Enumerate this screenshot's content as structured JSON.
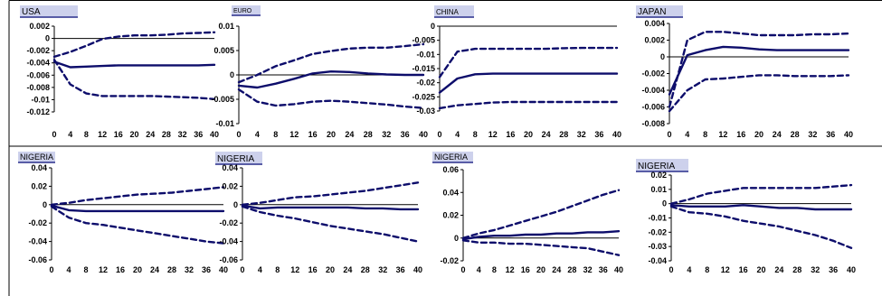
{
  "figure": {
    "colors": {
      "line": "#0d0d6b",
      "label_bg": "#cdd1ec",
      "label_border": "#2a2f8c",
      "frame": "#000000",
      "text": "#000000"
    }
  },
  "chart_data": [
    {
      "type": "line",
      "title": "USA",
      "x": [
        0,
        4,
        8,
        12,
        16,
        20,
        24,
        28,
        32,
        36,
        40
      ],
      "ylim": [
        -0.012,
        0.002
      ],
      "yticks": [
        "0.002",
        "0",
        "-0.002",
        "-0.004",
        "-0.006",
        "-0.008",
        "-0.01",
        "-0.012"
      ],
      "xticks": [
        "0",
        "4",
        "8",
        "12",
        "16",
        "20",
        "24",
        "28",
        "32",
        "36",
        "40"
      ],
      "zero_line": true,
      "series": [
        {
          "style": "dashed",
          "values": [
            -0.003,
            -0.0022,
            -0.0012,
            -0.0001,
            0.0003,
            0.0005,
            0.0005,
            0.0006,
            0.0008,
            0.0009,
            0.001
          ]
        },
        {
          "style": "solid",
          "values": [
            -0.0038,
            -0.0047,
            -0.0046,
            -0.0045,
            -0.0044,
            -0.0044,
            -0.0044,
            -0.0044,
            -0.0044,
            -0.0044,
            -0.0043
          ]
        },
        {
          "style": "dashed",
          "values": [
            -0.0035,
            -0.0075,
            -0.009,
            -0.0094,
            -0.0094,
            -0.0094,
            -0.0094,
            -0.0095,
            -0.0096,
            -0.0097,
            -0.0099
          ]
        }
      ]
    },
    {
      "type": "line",
      "title": "EURO",
      "x": [
        0,
        4,
        8,
        12,
        16,
        20,
        24,
        28,
        32,
        36,
        40
      ],
      "ylim": [
        -0.01,
        0.01
      ],
      "yticks": [
        "0.01",
        "0.005",
        "0",
        "-0.005",
        "-0.01"
      ],
      "xticks": [
        "0",
        "4",
        "8",
        "12",
        "16",
        "20",
        "24",
        "28",
        "32",
        "36",
        "40"
      ],
      "zero_line": true,
      "series": [
        {
          "style": "dashed",
          "values": [
            -0.0015,
            0,
            0.0018,
            0.003,
            0.0043,
            0.0049,
            0.0054,
            0.0056,
            0.0056,
            0.0059,
            0.0063
          ]
        },
        {
          "style": "solid",
          "values": [
            -0.0022,
            -0.0026,
            -0.0018,
            -0.0008,
            0.0003,
            0.0007,
            0.0006,
            0.0003,
            0.0001,
            0,
            0
          ]
        },
        {
          "style": "dashed",
          "values": [
            -0.003,
            -0.0055,
            -0.0063,
            -0.006,
            -0.0055,
            -0.0053,
            -0.0055,
            -0.0058,
            -0.0061,
            -0.0065,
            -0.0068
          ]
        }
      ]
    },
    {
      "type": "line",
      "title": "CHINA",
      "x": [
        0,
        4,
        8,
        12,
        16,
        20,
        24,
        28,
        32,
        36,
        40
      ],
      "ylim": [
        -0.03,
        0
      ],
      "yticks": [
        "0",
        "-0.005",
        "-0.01",
        "-0.015",
        "-0.02",
        "-0.025",
        "-0.03"
      ],
      "xticks": [
        "0",
        "4",
        "8",
        "12",
        "16",
        "20",
        "24",
        "28",
        "32",
        "36",
        "40"
      ],
      "zero_line": true,
      "series": [
        {
          "style": "dashed",
          "values": [
            -0.018,
            -0.009,
            -0.008,
            -0.008,
            -0.008,
            -0.008,
            -0.008,
            -0.0078,
            -0.0077,
            -0.0077,
            -0.0077
          ]
        },
        {
          "style": "solid",
          "values": [
            -0.0235,
            -0.0185,
            -0.017,
            -0.0168,
            -0.0168,
            -0.0168,
            -0.0168,
            -0.0168,
            -0.0168,
            -0.0168,
            -0.0168
          ]
        },
        {
          "style": "dashed",
          "values": [
            -0.029,
            -0.028,
            -0.0275,
            -0.027,
            -0.0268,
            -0.0268,
            -0.0268,
            -0.0268,
            -0.0268,
            -0.0268,
            -0.0268
          ]
        }
      ]
    },
    {
      "type": "line",
      "title": "JAPAN",
      "x": [
        0,
        4,
        8,
        12,
        16,
        20,
        24,
        28,
        32,
        36,
        40
      ],
      "ylim": [
        -0.008,
        0.004
      ],
      "yticks": [
        "0.004",
        "0.002",
        "0",
        "-0.002",
        "-0.004",
        "-0.006",
        "-0.008"
      ],
      "xticks": [
        "0",
        "4",
        "8",
        "12",
        "16",
        "20",
        "24",
        "28",
        "32",
        "36",
        "40"
      ],
      "zero_line": true,
      "series": [
        {
          "style": "dashed",
          "values": [
            -0.006,
            0.002,
            0.003,
            0.003,
            0.0028,
            0.0026,
            0.0026,
            0.0026,
            0.0027,
            0.0027,
            0.0028
          ]
        },
        {
          "style": "solid",
          "values": [
            -0.0045,
            0.0002,
            0.0008,
            0.0012,
            0.0011,
            0.0009,
            0.0008,
            0.0008,
            0.0008,
            0.0008,
            0.0008
          ]
        },
        {
          "style": "dashed",
          "values": [
            -0.0065,
            -0.004,
            -0.0027,
            -0.0026,
            -0.0024,
            -0.0022,
            -0.0022,
            -0.0023,
            -0.0023,
            -0.0023,
            -0.0022
          ]
        }
      ]
    },
    {
      "type": "line",
      "title": "NIGERIA",
      "x": [
        0,
        4,
        8,
        12,
        16,
        20,
        24,
        28,
        32,
        36,
        40
      ],
      "ylim": [
        -0.06,
        0.04
      ],
      "yticks": [
        "0.04",
        "0.02",
        "0",
        "-0.02",
        "-0.04",
        "-0.06"
      ],
      "xticks": [
        "0",
        "4",
        "8",
        "12",
        "16",
        "20",
        "24",
        "28",
        "32",
        "36",
        "40"
      ],
      "zero_line": true,
      "series": [
        {
          "style": "dashed",
          "values": [
            0,
            0.002,
            0.005,
            0.007,
            0.009,
            0.011,
            0.012,
            0.013,
            0.015,
            0.017,
            0.019
          ]
        },
        {
          "style": "solid",
          "values": [
            -0.001,
            -0.006,
            -0.007,
            -0.007,
            -0.007,
            -0.007,
            -0.007,
            -0.007,
            -0.007,
            -0.007,
            -0.007
          ]
        },
        {
          "style": "dashed",
          "values": [
            -0.002,
            -0.014,
            -0.02,
            -0.022,
            -0.025,
            -0.028,
            -0.031,
            -0.034,
            -0.037,
            -0.04,
            -0.042
          ]
        }
      ]
    },
    {
      "type": "line",
      "title": "NIGERIA",
      "x": [
        0,
        4,
        8,
        12,
        16,
        20,
        24,
        28,
        32,
        36,
        40
      ],
      "ylim": [
        -0.06,
        0.04
      ],
      "yticks": [
        "0.04",
        "0.02",
        "0",
        "-0.02",
        "-0.04",
        "-0.06"
      ],
      "xticks": [
        "0",
        "4",
        "8",
        "12",
        "16",
        "20",
        "24",
        "28",
        "32",
        "36",
        "40"
      ],
      "zero_line": true,
      "series": [
        {
          "style": "dashed",
          "values": [
            0,
            0.002,
            0.005,
            0.008,
            0.009,
            0.011,
            0.013,
            0.015,
            0.018,
            0.021,
            0.024
          ]
        },
        {
          "style": "solid",
          "values": [
            -0.001,
            -0.004,
            -0.003,
            -0.003,
            -0.003,
            -0.003,
            -0.003,
            -0.004,
            -0.004,
            -0.005,
            -0.005
          ]
        },
        {
          "style": "dashed",
          "values": [
            -0.002,
            -0.008,
            -0.012,
            -0.015,
            -0.019,
            -0.023,
            -0.026,
            -0.029,
            -0.032,
            -0.036,
            -0.04
          ]
        }
      ]
    },
    {
      "type": "line",
      "title": "NIGERIA",
      "x": [
        0,
        4,
        8,
        12,
        16,
        20,
        24,
        28,
        32,
        36,
        40
      ],
      "ylim": [
        -0.02,
        0.06
      ],
      "yticks": [
        "0.06",
        "0.04",
        "0.02",
        "0",
        "-0.02"
      ],
      "xticks": [
        "0",
        "4",
        "8",
        "12",
        "16",
        "20",
        "24",
        "28",
        "32",
        "36",
        "40"
      ],
      "zero_line": true,
      "series": [
        {
          "style": "dashed",
          "values": [
            0,
            0.004,
            0.007,
            0.011,
            0.015,
            0.019,
            0.023,
            0.028,
            0.033,
            0.038,
            0.042
          ]
        },
        {
          "style": "solid",
          "values": [
            -0.001,
            0.001,
            0.002,
            0.002,
            0.003,
            0.003,
            0.004,
            0.004,
            0.005,
            0.005,
            0.006
          ]
        },
        {
          "style": "dashed",
          "values": [
            -0.002,
            -0.004,
            -0.004,
            -0.005,
            -0.005,
            -0.006,
            -0.007,
            -0.008,
            -0.009,
            -0.012,
            -0.015
          ]
        }
      ]
    },
    {
      "type": "line",
      "title": "NIGERIA",
      "x": [
        0,
        4,
        8,
        12,
        16,
        20,
        24,
        28,
        32,
        36,
        40
      ],
      "ylim": [
        -0.04,
        0.02
      ],
      "yticks": [
        "0.02",
        "0.01",
        "0",
        "-0.01",
        "-0.02",
        "-0.03",
        "-0.04"
      ],
      "xticks": [
        "0",
        "4",
        "8",
        "12",
        "16",
        "20",
        "24",
        "28",
        "32",
        "36",
        "40"
      ],
      "zero_line": true,
      "series": [
        {
          "style": "dashed",
          "values": [
            0,
            0.003,
            0.007,
            0.009,
            0.011,
            0.011,
            0.011,
            0.011,
            0.011,
            0.012,
            0.013
          ]
        },
        {
          "style": "solid",
          "values": [
            -0.001,
            -0.002,
            -0.002,
            -0.002,
            -0.001,
            -0.002,
            -0.003,
            -0.003,
            -0.004,
            -0.004,
            -0.004
          ]
        },
        {
          "style": "dashed",
          "values": [
            -0.002,
            -0.006,
            -0.007,
            -0.009,
            -0.012,
            -0.014,
            -0.016,
            -0.019,
            -0.022,
            -0.026,
            -0.031
          ]
        }
      ]
    }
  ]
}
